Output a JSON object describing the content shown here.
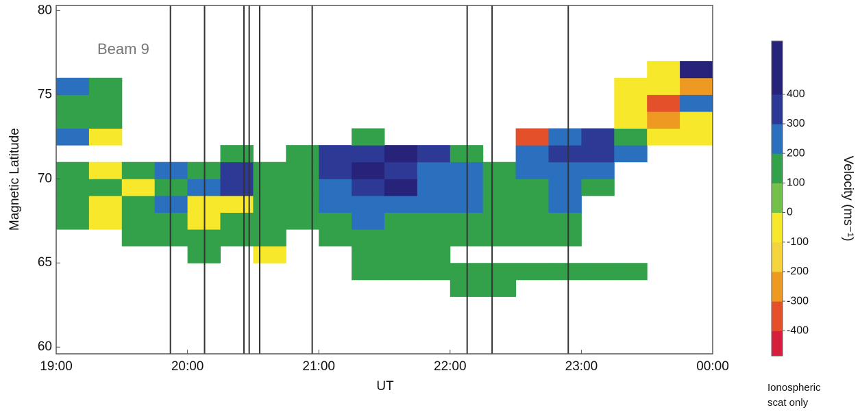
{
  "chart_data": {
    "type": "heatmap",
    "annotation": "Beam 9",
    "x_label": "UT",
    "y_label": "Magnetic Latitude",
    "xlim": [
      19,
      24
    ],
    "xticks": [
      {
        "value": 19,
        "label": "19:00"
      },
      {
        "value": 20,
        "label": "20:00"
      },
      {
        "value": 21,
        "label": "21:00"
      },
      {
        "value": 22,
        "label": "22:00"
      },
      {
        "value": 23,
        "label": "23:00"
      },
      {
        "value": 24,
        "label": "00:00"
      }
    ],
    "ylim": [
      59.6,
      80.3
    ],
    "yticks": [
      60,
      65,
      70,
      75,
      80
    ],
    "vlines": [
      19.87,
      20.13,
      20.43,
      20.47,
      20.55,
      20.95,
      22.13,
      22.32,
      22.9
    ],
    "x_edges": [
      19,
      19.25,
      19.5,
      19.75,
      20,
      20.25,
      20.5,
      20.75,
      21,
      21.25,
      21.5,
      21.75,
      22,
      22.25,
      22.5,
      22.75,
      23,
      23.25,
      23.5,
      23.75,
      24
    ],
    "y_edges": [
      60,
      61,
      62,
      63,
      64,
      65,
      66,
      67,
      68,
      69,
      70,
      71,
      72,
      73,
      74,
      75,
      76,
      77,
      78,
      79,
      80
    ],
    "z": [
      [
        null,
        null,
        null,
        null,
        null,
        null,
        null,
        null,
        null,
        null,
        null,
        null,
        null,
        null,
        null,
        null,
        null,
        null,
        null,
        null
      ],
      [
        null,
        null,
        null,
        null,
        null,
        null,
        null,
        null,
        null,
        null,
        null,
        null,
        null,
        null,
        null,
        null,
        null,
        null,
        null,
        null
      ],
      [
        null,
        null,
        null,
        null,
        null,
        null,
        null,
        null,
        null,
        null,
        null,
        null,
        null,
        null,
        null,
        null,
        null,
        null,
        null,
        null
      ],
      [
        null,
        null,
        null,
        null,
        null,
        null,
        null,
        null,
        null,
        null,
        null,
        null,
        150,
        150,
        null,
        null,
        null,
        null,
        null,
        null
      ],
      [
        null,
        null,
        null,
        null,
        null,
        null,
        null,
        null,
        null,
        150,
        150,
        150,
        150,
        150,
        150,
        150,
        150,
        150,
        null,
        null
      ],
      [
        null,
        null,
        null,
        null,
        120,
        null,
        -50,
        null,
        null,
        150,
        120,
        150,
        null,
        null,
        null,
        null,
        null,
        null,
        null,
        null
      ],
      [
        null,
        null,
        150,
        150,
        120,
        150,
        100,
        null,
        150,
        150,
        150,
        150,
        150,
        120,
        150,
        150,
        null,
        null,
        null,
        null
      ],
      [
        150,
        -50,
        150,
        150,
        -60,
        150,
        150,
        150,
        150,
        200,
        150,
        150,
        150,
        150,
        150,
        150,
        null,
        null,
        null,
        null
      ],
      [
        150,
        -40,
        150,
        200,
        -80,
        -50,
        150,
        150,
        200,
        200,
        200,
        200,
        250,
        150,
        150,
        200,
        null,
        null,
        null,
        null
      ],
      [
        150,
        150,
        -50,
        150,
        200,
        300,
        120,
        150,
        200,
        300,
        400,
        200,
        200,
        150,
        150,
        200,
        150,
        null,
        null,
        null
      ],
      [
        150,
        -60,
        150,
        200,
        150,
        300,
        150,
        150,
        300,
        450,
        300,
        200,
        200,
        150,
        250,
        200,
        200,
        null,
        null,
        null
      ],
      [
        null,
        null,
        null,
        null,
        null,
        150,
        null,
        150,
        350,
        300,
        450,
        300,
        150,
        null,
        250,
        300,
        300,
        200,
        null,
        null
      ],
      [
        200,
        -80,
        null,
        null,
        null,
        null,
        null,
        null,
        null,
        150,
        null,
        null,
        null,
        null,
        -350,
        200,
        300,
        150,
        -60,
        -80
      ],
      [
        150,
        150,
        null,
        null,
        null,
        null,
        null,
        null,
        null,
        null,
        null,
        null,
        null,
        null,
        null,
        null,
        null,
        -40,
        -300,
        -60
      ],
      [
        150,
        150,
        null,
        null,
        null,
        null,
        null,
        null,
        null,
        null,
        null,
        null,
        null,
        null,
        null,
        null,
        null,
        -60,
        -400,
        200
      ],
      [
        200,
        150,
        null,
        null,
        null,
        null,
        null,
        null,
        null,
        null,
        null,
        null,
        null,
        null,
        null,
        null,
        null,
        -50,
        -80,
        -300
      ],
      [
        null,
        null,
        null,
        null,
        null,
        null,
        null,
        null,
        null,
        null,
        null,
        null,
        null,
        null,
        null,
        null,
        null,
        null,
        -60,
        450
      ],
      [
        null,
        null,
        null,
        null,
        null,
        null,
        null,
        null,
        null,
        null,
        null,
        null,
        null,
        null,
        null,
        null,
        null,
        null,
        null,
        null
      ],
      [
        null,
        null,
        null,
        null,
        null,
        null,
        null,
        null,
        null,
        null,
        null,
        null,
        null,
        null,
        null,
        null,
        null,
        null,
        null,
        null
      ],
      [
        null,
        null,
        null,
        null,
        null,
        null,
        null,
        null,
        null,
        null,
        null,
        null,
        null,
        null,
        null,
        null,
        null,
        null,
        null,
        null
      ]
    ],
    "clim": [
      -485,
      580
    ],
    "cticks": [
      -400,
      -300,
      -200,
      -100,
      0,
      100,
      200,
      300,
      400
    ],
    "colors": [
      "#d61f3c",
      "#e4502a",
      "#ee9a22",
      "#f4d43a",
      "#f7e82c",
      "#74c04c",
      "#33a04a",
      "#2a70be",
      "#2c3a96",
      "#27237a"
    ],
    "colorbar_label": "Velocity (ms⁻¹)",
    "colorbar_note": [
      "Ionospheric",
      "scat only"
    ]
  }
}
